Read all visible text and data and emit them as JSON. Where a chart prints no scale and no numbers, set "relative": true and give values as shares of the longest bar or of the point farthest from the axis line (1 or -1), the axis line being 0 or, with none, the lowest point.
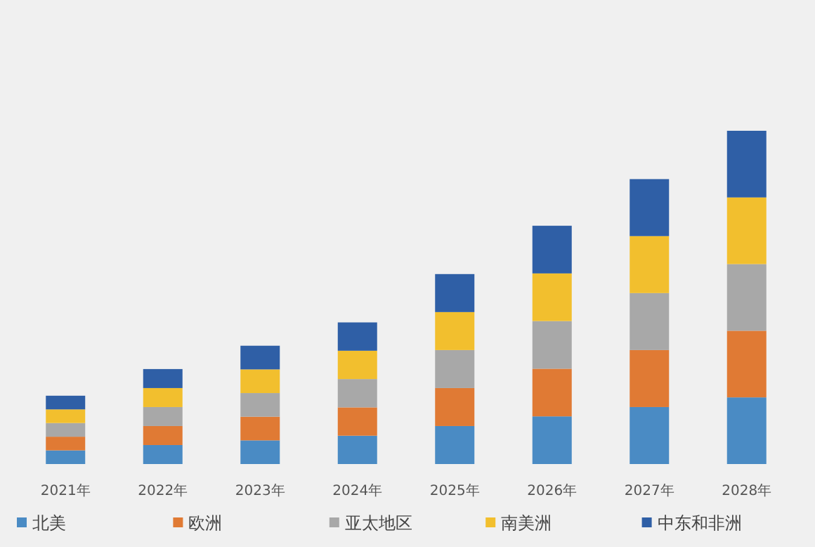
{
  "chart_data": {
    "type": "bar",
    "stacked": true,
    "relative": true,
    "legend": "bottom",
    "categories": [
      "2021年",
      "2022年",
      "2023年",
      "2024年",
      "2025年",
      "2026年",
      "2027年",
      "2028年"
    ],
    "series": [
      {
        "name": "北美",
        "color": "#4a8bc4",
        "values": [
          0.041,
          0.057,
          0.071,
          0.085,
          0.114,
          0.143,
          0.171,
          0.2
        ]
      },
      {
        "name": "欧洲",
        "color": "#e07a34",
        "values": [
          0.041,
          0.057,
          0.071,
          0.085,
          0.114,
          0.143,
          0.171,
          0.2
        ]
      },
      {
        "name": "亚太地区",
        "color": "#a8a8a8",
        "values": [
          0.041,
          0.057,
          0.071,
          0.085,
          0.114,
          0.143,
          0.171,
          0.2
        ]
      },
      {
        "name": "南美洲",
        "color": "#f2bf2e",
        "values": [
          0.041,
          0.057,
          0.071,
          0.085,
          0.114,
          0.143,
          0.171,
          0.2
        ]
      },
      {
        "name": "中东和非洲",
        "color": "#2f5fa6",
        "values": [
          0.041,
          0.057,
          0.071,
          0.085,
          0.114,
          0.143,
          0.171,
          0.2
        ]
      }
    ]
  }
}
